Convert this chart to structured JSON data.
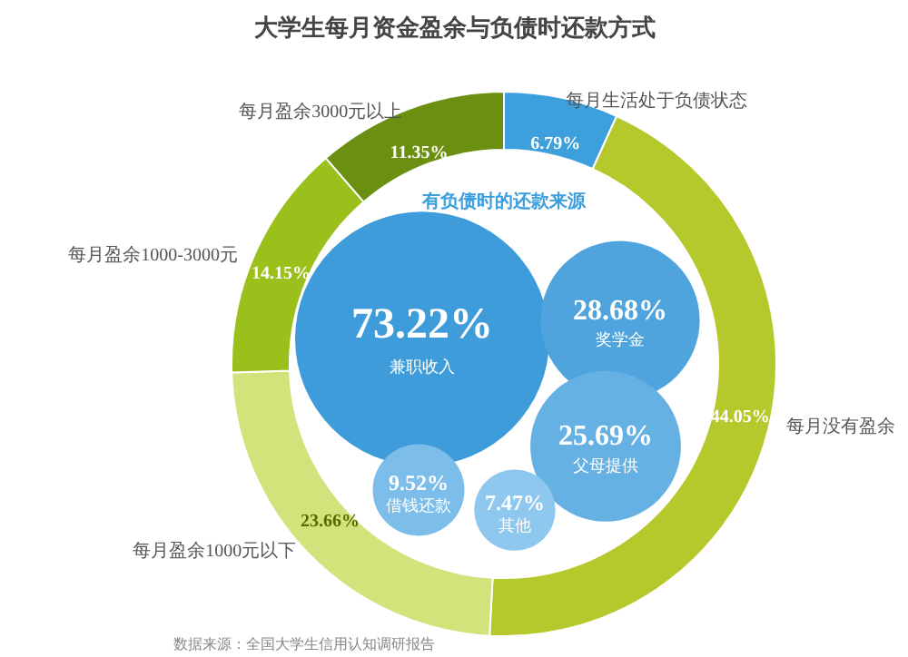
{
  "chart_data": [
    {
      "type": "donut",
      "title": "大学生每月资金盈余与负债时还款方式",
      "categories": [
        "每月生活处于负债状态",
        "每月没有盈余",
        "每月盈余1000元以下",
        "每月盈余1000-3000元",
        "每月盈余3000元以上"
      ],
      "values": [
        6.79,
        44.05,
        23.66,
        14.15,
        11.35
      ],
      "colors": [
        "#3d9fdc",
        "#b6c92c",
        "#d3e37c",
        "#9bc01c",
        "#6b8f10"
      ],
      "value_labels": [
        "6.79%",
        "44.05%",
        "23.66%",
        "14.15%",
        "11.35%"
      ],
      "annotations": [
        "数据来源：全国大学生信用认知调研报告"
      ]
    },
    {
      "type": "other",
      "title": "有负债时的还款来源",
      "categories": [
        "兼职收入",
        "奖学金",
        "父母提供",
        "借钱还款",
        "其他"
      ],
      "values": [
        73.22,
        28.68,
        25.69,
        9.52,
        7.47
      ],
      "colors": [
        "#3f9cda",
        "#4fa4dd",
        "#66b1e4",
        "#7cbde9",
        "#8fc8ee"
      ],
      "value_labels": [
        "73.22%",
        "28.68%",
        "25.69%",
        "9.52%",
        "7.47%"
      ]
    }
  ]
}
